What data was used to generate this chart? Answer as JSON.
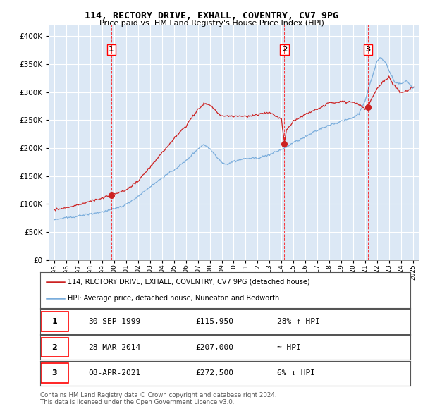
{
  "title": "114, RECTORY DRIVE, EXHALL, COVENTRY, CV7 9PG",
  "subtitle": "Price paid vs. HM Land Registry's House Price Index (HPI)",
  "legend_line1": "114, RECTORY DRIVE, EXHALL, COVENTRY, CV7 9PG (detached house)",
  "legend_line2": "HPI: Average price, detached house, Nuneaton and Bedworth",
  "footer1": "Contains HM Land Registry data © Crown copyright and database right 2024.",
  "footer2": "This data is licensed under the Open Government Licence v3.0.",
  "transactions": [
    {
      "num": 1,
      "date": "30-SEP-1999",
      "price": 115950,
      "hpi_rel": "28% ↑ HPI",
      "x": 1999.75
    },
    {
      "num": 2,
      "date": "28-MAR-2014",
      "price": 207000,
      "hpi_rel": "≈ HPI",
      "x": 2014.25
    },
    {
      "num": 3,
      "date": "08-APR-2021",
      "price": 272500,
      "hpi_rel": "6% ↓ HPI",
      "x": 2021.25
    }
  ],
  "hpi_color": "#7aaddc",
  "price_color": "#cc2222",
  "background_color": "#dce8f5",
  "ylim": [
    0,
    420000
  ],
  "xlim_start": 1994.5,
  "xlim_end": 2025.5,
  "yticks": [
    0,
    50000,
    100000,
    150000,
    200000,
    250000,
    300000,
    350000,
    400000
  ],
  "xticks": [
    1995,
    1996,
    1997,
    1998,
    1999,
    2000,
    2001,
    2002,
    2003,
    2004,
    2005,
    2006,
    2007,
    2008,
    2009,
    2010,
    2011,
    2012,
    2013,
    2014,
    2015,
    2016,
    2017,
    2018,
    2019,
    2020,
    2021,
    2022,
    2023,
    2024,
    2025
  ]
}
